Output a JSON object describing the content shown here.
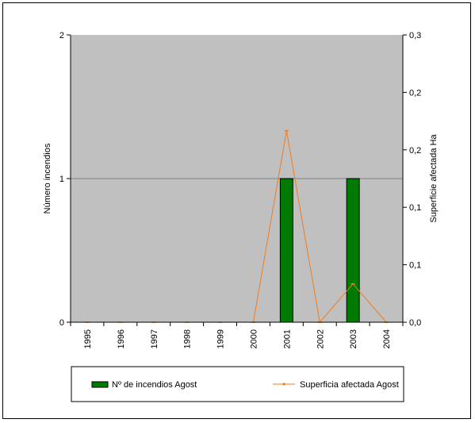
{
  "chart_data": {
    "type": "bar",
    "categories": [
      "1995",
      "1996",
      "1997",
      "1998",
      "1999",
      "2000",
      "2001",
      "2002",
      "2003",
      "2004"
    ],
    "series": [
      {
        "name": "Nº de incendios Agost",
        "type": "bar",
        "axis": "left",
        "color": "#007a00",
        "values": [
          0,
          0,
          0,
          0,
          0,
          0,
          1,
          0,
          1,
          0
        ]
      },
      {
        "name": "Superficia afectada Agost",
        "type": "line",
        "axis": "right",
        "color": "#f07c1c",
        "values": [
          0,
          0,
          0,
          0,
          0,
          0,
          0.2,
          0,
          0.04,
          0
        ]
      }
    ],
    "ylabel": "Número incendios",
    "ylabel_right": "Superficie afectada Ha",
    "ylim": [
      0,
      2
    ],
    "ylim_right": [
      0,
      0.3
    ],
    "yticks": [
      "0",
      "1",
      "2"
    ],
    "yticks_right": [
      "0,0",
      "0,1",
      "0,1",
      "0,2",
      "0,2",
      "0,3"
    ],
    "plot_background": "#c0c0c0",
    "grid": true,
    "legend": "bottom"
  }
}
